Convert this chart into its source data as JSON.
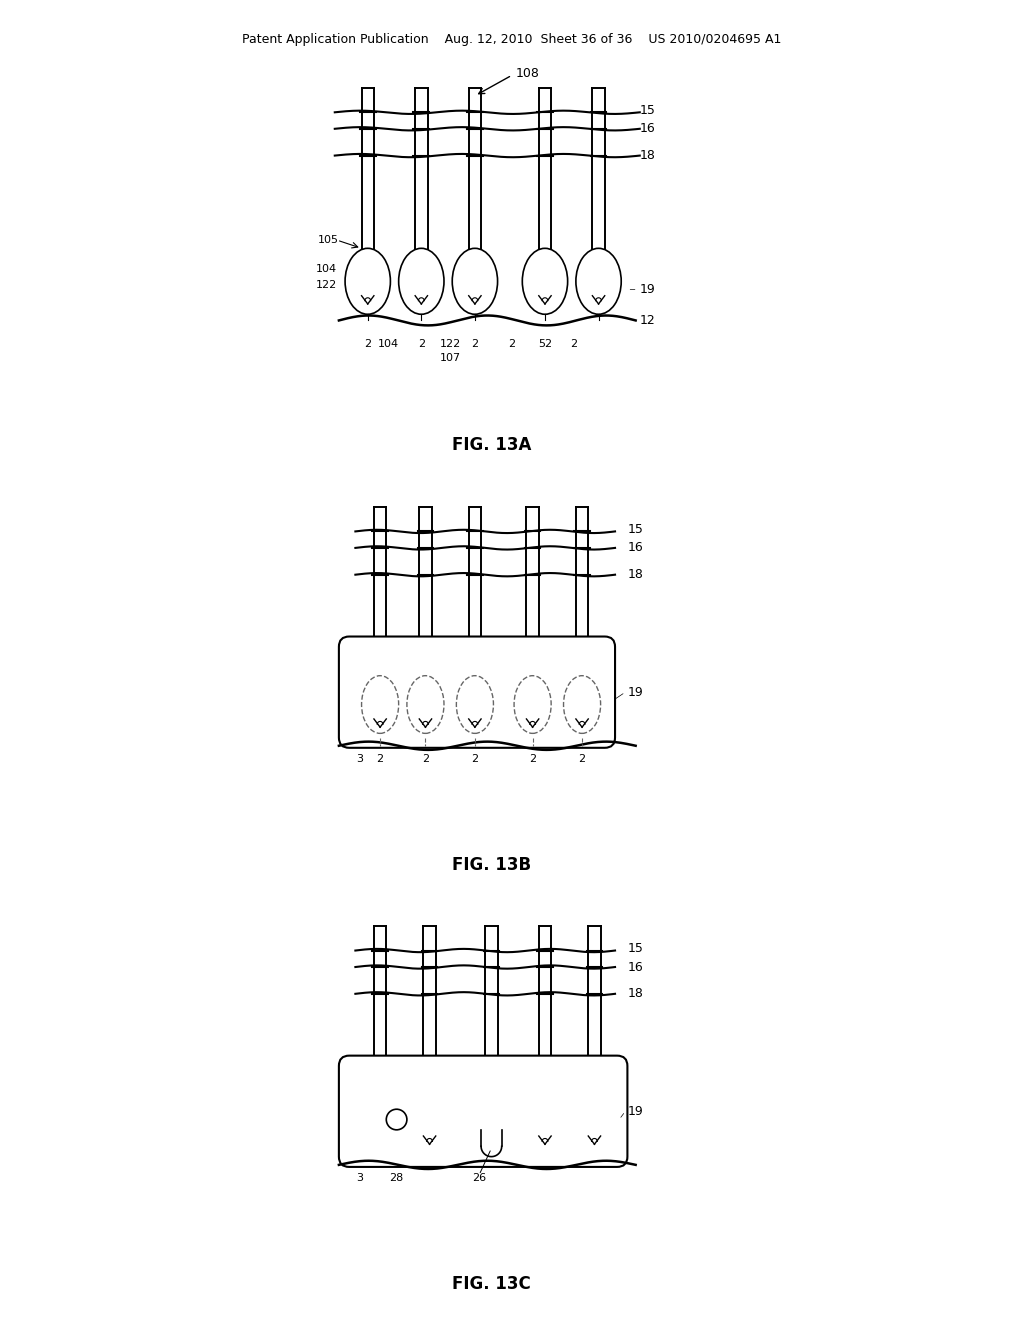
{
  "bg_color": "#ffffff",
  "header_text": "Patent Application Publication    Aug. 12, 2010  Sheet 36 of 36    US 2010/0204695 A1",
  "fig_labels": [
    "FIG. 13A",
    "FIG. 13B",
    "FIG. 13C"
  ],
  "line_color": "#000000",
  "dashed_color": "#666666",
  "label_fontsize": 10,
  "header_fontsize": 9,
  "figlabel_fontsize": 12
}
